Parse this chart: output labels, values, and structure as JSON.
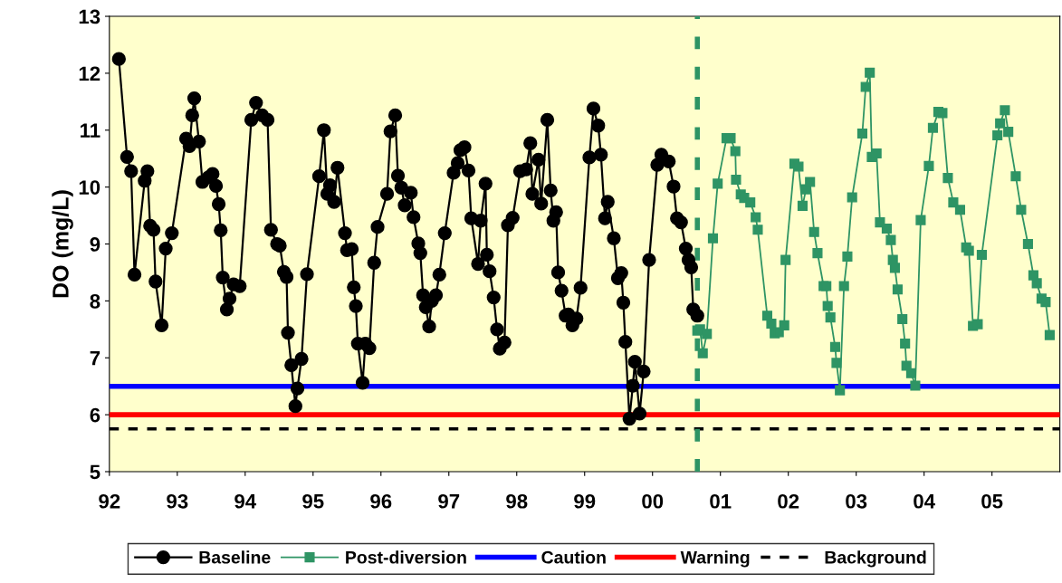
{
  "chart_data": {
    "type": "line",
    "ylabel": "DO (mg/L)",
    "xlim": [
      1992,
      2006
    ],
    "ylim": [
      5,
      13
    ],
    "xticks": [
      {
        "value": 1992,
        "label": "92"
      },
      {
        "value": 1993,
        "label": "93"
      },
      {
        "value": 1994,
        "label": "94"
      },
      {
        "value": 1995,
        "label": "95"
      },
      {
        "value": 1996,
        "label": "96"
      },
      {
        "value": 1997,
        "label": "97"
      },
      {
        "value": 1998,
        "label": "98"
      },
      {
        "value": 1999,
        "label": "99"
      },
      {
        "value": 2000,
        "label": "00"
      },
      {
        "value": 2001,
        "label": "01"
      },
      {
        "value": 2002,
        "label": "02"
      },
      {
        "value": 2003,
        "label": "03"
      },
      {
        "value": 2004,
        "label": "04"
      },
      {
        "value": 2005,
        "label": "05"
      }
    ],
    "yticks": [
      5,
      6,
      7,
      8,
      9,
      10,
      11,
      12,
      13
    ],
    "grid": false,
    "legend": "bottom",
    "series": [
      {
        "name": "Baseline",
        "color": "#000000",
        "marker": "circle",
        "line_style": "solid",
        "x": [
          1992.14,
          1992.26,
          1992.32,
          1992.37,
          1992.52,
          1992.56,
          1992.6,
          1992.65,
          1992.68,
          1992.77,
          1992.83,
          1992.92,
          1993.13,
          1993.18,
          1993.22,
          1993.25,
          1993.32,
          1993.37,
          1993.46,
          1993.52,
          1993.57,
          1993.61,
          1993.64,
          1993.67,
          1993.73,
          1993.77,
          1993.83,
          1993.92,
          1994.09,
          1994.16,
          1994.25,
          1994.33,
          1994.38,
          1994.47,
          1994.51,
          1994.57,
          1994.61,
          1994.63,
          1994.68,
          1994.74,
          1994.77,
          1994.83,
          1994.91,
          1995.09,
          1995.16,
          1995.21,
          1995.25,
          1995.31,
          1995.36,
          1995.47,
          1995.5,
          1995.57,
          1995.6,
          1995.63,
          1995.66,
          1995.73,
          1995.77,
          1995.83,
          1995.9,
          1995.95,
          1996.09,
          1996.14,
          1996.21,
          1996.25,
          1996.3,
          1996.35,
          1996.44,
          1996.48,
          1996.55,
          1996.58,
          1996.62,
          1996.66,
          1996.71,
          1996.75,
          1996.81,
          1996.86,
          1996.94,
          1997.07,
          1997.13,
          1997.17,
          1997.23,
          1997.29,
          1997.33,
          1997.43,
          1997.47,
          1997.54,
          1997.56,
          1997.6,
          1997.66,
          1997.71,
          1997.75,
          1997.82,
          1997.87,
          1997.94,
          1998.05,
          1998.14,
          1998.2,
          1998.23,
          1998.32,
          1998.36,
          1998.45,
          1998.5,
          1998.54,
          1998.58,
          1998.61,
          1998.66,
          1998.72,
          1998.76,
          1998.82,
          1998.88,
          1998.94,
          1999.07,
          1999.13,
          1999.2,
          1999.24,
          1999.3,
          1999.34,
          1999.43,
          1999.49,
          1999.54,
          1999.57,
          1999.6,
          1999.66,
          1999.71,
          1999.74,
          1999.81,
          1999.87,
          1999.95,
          2000.07,
          2000.13,
          2000.24,
          2000.31,
          2000.36,
          2000.42,
          2000.49,
          2000.53,
          2000.57,
          2000.6,
          2000.66
        ],
        "values": [
          12.25,
          10.53,
          10.28,
          8.46,
          10.11,
          10.28,
          9.32,
          9.25,
          8.34,
          7.57,
          8.92,
          9.19,
          10.85,
          10.72,
          11.26,
          11.56,
          10.8,
          10.09,
          10.17,
          10.23,
          10.02,
          9.7,
          9.24,
          8.41,
          7.85,
          8.04,
          8.29,
          8.26,
          11.18,
          11.48,
          11.26,
          11.18,
          9.25,
          9.0,
          8.97,
          8.51,
          8.42,
          7.44,
          6.87,
          6.15,
          6.46,
          6.98,
          8.47,
          10.19,
          11.0,
          9.88,
          10.03,
          9.74,
          10.34,
          9.19,
          8.89,
          8.91,
          8.24,
          7.91,
          7.25,
          6.56,
          7.25,
          7.17,
          8.67,
          9.3,
          9.88,
          10.98,
          11.26,
          10.2,
          9.99,
          9.68,
          9.9,
          9.47,
          9.01,
          8.84,
          8.1,
          7.89,
          7.55,
          8.0,
          8.1,
          8.46,
          9.19,
          10.25,
          10.42,
          10.65,
          10.7,
          10.29,
          9.45,
          8.65,
          9.41,
          10.06,
          8.81,
          8.52,
          8.06,
          7.5,
          7.16,
          7.27,
          9.33,
          9.46,
          10.28,
          10.31,
          10.77,
          9.88,
          10.48,
          9.71,
          11.18,
          9.94,
          9.41,
          9.56,
          8.5,
          8.18,
          7.74,
          7.76,
          7.57,
          7.69,
          8.23,
          10.52,
          11.38,
          11.08,
          10.57,
          9.45,
          9.74,
          9.1,
          8.4,
          8.49,
          7.97,
          7.28,
          5.93,
          6.51,
          6.93,
          6.02,
          6.76,
          8.72,
          10.39,
          10.57,
          10.45,
          10.01,
          9.45,
          9.38,
          8.92,
          8.72,
          8.59,
          7.85,
          7.74
        ]
      },
      {
        "name": "Post-diversion",
        "color": "#2e9464",
        "marker": "square",
        "line_style": "solid",
        "x": [
          2000.66,
          2000.7,
          2000.74,
          2000.8,
          2000.89,
          2000.96,
          2001.09,
          2001.15,
          2001.22,
          2001.23,
          2001.3,
          2001.35,
          2001.44,
          2001.52,
          2001.55,
          2001.69,
          2001.75,
          2001.8,
          2001.86,
          2001.94,
          2001.96,
          2002.09,
          2002.15,
          2002.21,
          2002.26,
          2002.32,
          2002.38,
          2002.43,
          2002.52,
          2002.56,
          2002.58,
          2002.62,
          2002.69,
          2002.71,
          2002.76,
          2002.82,
          2002.87,
          2002.94,
          2003.09,
          2003.14,
          2003.2,
          2003.23,
          2003.3,
          2003.35,
          2003.45,
          2003.51,
          2003.54,
          2003.57,
          2003.61,
          2003.68,
          2003.72,
          2003.74,
          2003.81,
          2003.87,
          2003.95,
          2004.07,
          2004.13,
          2004.21,
          2004.27,
          2004.35,
          2004.43,
          2004.53,
          2004.62,
          2004.66,
          2004.72,
          2004.79,
          2004.85,
          2005.08,
          2005.12,
          2005.19,
          2005.24,
          2005.35,
          2005.43,
          2005.53,
          2005.61,
          2005.66,
          2005.73,
          2005.79,
          2005.85
        ],
        "values": [
          7.48,
          7.5,
          7.08,
          7.42,
          9.1,
          10.06,
          10.86,
          10.86,
          10.63,
          10.13,
          9.87,
          9.81,
          9.73,
          9.47,
          9.25,
          7.74,
          7.6,
          7.43,
          7.45,
          7.57,
          8.72,
          10.41,
          10.36,
          9.67,
          9.96,
          10.09,
          9.21,
          8.84,
          8.26,
          8.26,
          7.91,
          7.71,
          7.19,
          6.91,
          6.43,
          8.26,
          8.78,
          9.82,
          10.94,
          11.76,
          12.01,
          10.53,
          10.59,
          9.38,
          9.27,
          9.07,
          8.72,
          8.58,
          8.2,
          7.68,
          7.25,
          6.86,
          6.73,
          6.51,
          9.42,
          10.37,
          11.04,
          11.32,
          11.3,
          10.16,
          9.73,
          9.6,
          8.94,
          8.88,
          7.56,
          7.59,
          8.81,
          10.91,
          11.12,
          11.35,
          10.97,
          10.19,
          9.6,
          9.0,
          8.45,
          8.31,
          8.04,
          7.98,
          7.4
        ]
      }
    ],
    "ref_lines": [
      {
        "axis": "y",
        "value": 6.5,
        "label": "Caution",
        "color": "#0000ff",
        "line_style": "solid"
      },
      {
        "axis": "y",
        "value": 6.0,
        "label": "Warning",
        "color": "#ff0000",
        "line_style": "solid"
      },
      {
        "axis": "y",
        "value": 5.75,
        "label": "Background",
        "color": "#000000",
        "line_style": "dashed"
      },
      {
        "axis": "x",
        "value": 2000.66,
        "color": "#2e9464",
        "line_style": "dashed"
      }
    ]
  }
}
